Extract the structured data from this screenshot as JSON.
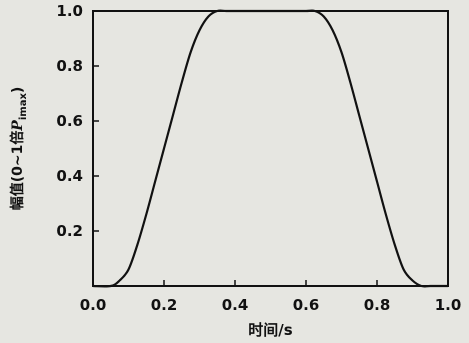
{
  "chart_data": {
    "type": "line",
    "title": "",
    "xlabel": "时间/s",
    "ylabel_prefix": "幅值(0~1倍",
    "ylabel_var": "P",
    "ylabel_sub": "imax",
    "ylabel_suffix": ")",
    "xlim": [
      0.0,
      1.0
    ],
    "ylim": [
      0.0,
      1.0
    ],
    "grid": false,
    "x_ticks": [
      {
        "value": 0.0,
        "label": "0.0"
      },
      {
        "value": 0.2,
        "label": "0.2"
      },
      {
        "value": 0.4,
        "label": "0.4"
      },
      {
        "value": 0.6,
        "label": "0.6"
      },
      {
        "value": 0.8,
        "label": "0.8"
      },
      {
        "value": 1.0,
        "label": "1.0"
      }
    ],
    "y_ticks": [
      {
        "value": 0.2,
        "label": "0.2"
      },
      {
        "value": 0.4,
        "label": "0.4"
      },
      {
        "value": 0.6,
        "label": "0.6"
      },
      {
        "value": 0.8,
        "label": "0.8"
      },
      {
        "value": 1.0,
        "label": "1.0"
      }
    ],
    "series": [
      {
        "color": "#111111",
        "x": [
          0.0,
          0.05,
          0.075,
          0.1,
          0.125,
          0.15,
          0.175,
          0.2,
          0.225,
          0.25,
          0.275,
          0.3,
          0.325,
          0.35,
          0.375,
          0.4,
          0.45,
          0.5,
          0.55,
          0.6,
          0.625,
          0.65,
          0.675,
          0.7,
          0.725,
          0.75,
          0.775,
          0.8,
          0.825,
          0.85,
          0.875,
          0.9,
          0.925,
          0.95,
          1.0
        ],
        "y": [
          0.0,
          0.0,
          0.02,
          0.06,
          0.15,
          0.26,
          0.38,
          0.5,
          0.62,
          0.74,
          0.85,
          0.93,
          0.98,
          1.0,
          1.0,
          1.0,
          1.0,
          1.0,
          1.0,
          1.0,
          1.0,
          0.98,
          0.93,
          0.85,
          0.74,
          0.62,
          0.5,
          0.38,
          0.26,
          0.15,
          0.06,
          0.02,
          0.0,
          0.0,
          0.0
        ]
      }
    ]
  }
}
